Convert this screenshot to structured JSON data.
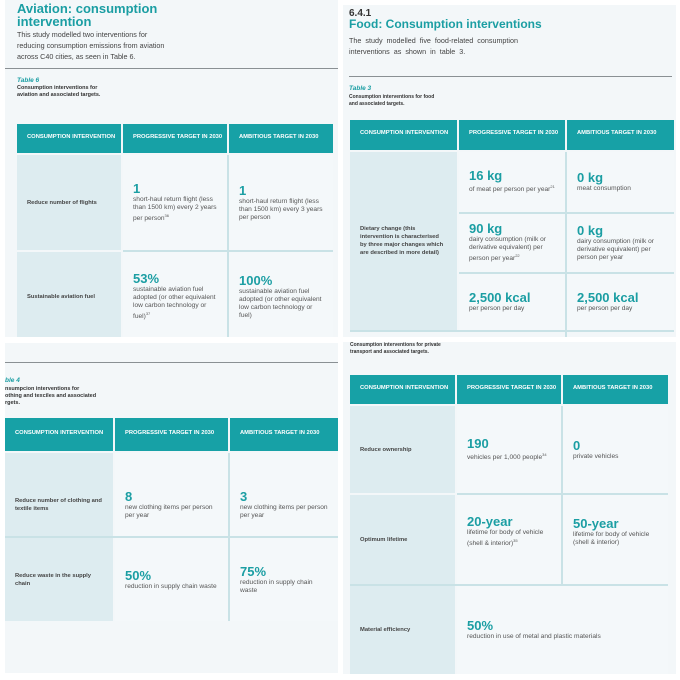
{
  "aviation": {
    "title_line1": "Aviation: consumption",
    "title_line2": "intervention",
    "intro": [
      "This study modelled two interventions for",
      "reducing consumption emissions from aviation",
      "across C40 cities, as seen in Table 6."
    ],
    "table_label": "Table 6",
    "caption": [
      "Consumption interventions for",
      "aviation and associated targets."
    ],
    "headers": [
      "CONSUMPTION INTERVENTION",
      "PROGRESSIVE TARGET IN 2030",
      "AMBITIOUS TARGET IN 2030"
    ],
    "rows": [
      {
        "label": "Reduce number of flights",
        "progressive": {
          "value": "1",
          "desc": "short-haul return flight (less than 1500 km) every 2 years per person",
          "note": "36"
        },
        "ambitious": {
          "value": "1",
          "desc": "short-haul return flight (less than 1500 km) every 3 years per person"
        }
      },
      {
        "label": "Sustainable aviation fuel",
        "progressive": {
          "value": "53%",
          "desc": "sustainable aviation fuel adopted (or other equivalent low carbon technology or fuel)",
          "note": "37"
        },
        "ambitious": {
          "value": "100%",
          "desc": "sustainable aviation fuel adopted (or other equivalent low carbon technology or fuel)"
        }
      }
    ]
  },
  "food": {
    "section": "6.4.1",
    "title": "Food: Consumption interventions",
    "intro": [
      "The study modelled five food-related consumption",
      "interventions as shown in table 3."
    ],
    "table_label": "Table 3",
    "caption": [
      "Consumption interventions for food",
      "and associated targets."
    ],
    "headers": [
      "CONSUMPTION INTERVENTION",
      "PROGRESSIVE TARGET IN 2030",
      "AMBITIOUS TARGET IN 2030"
    ],
    "label": "Dietary change (this intervention is characterised by three major changes which are described in more detail)",
    "rows": [
      {
        "progressive": {
          "value": "16 kg",
          "desc": "of meat per person per year",
          "note": "21"
        },
        "ambitious": {
          "value": "0 kg",
          "desc": "meat consumption"
        }
      },
      {
        "progressive": {
          "value": "90 kg",
          "desc": "dairy consumption (milk or derivative equivalent) per person per year",
          "note": "22"
        },
        "ambitious": {
          "value": "0 kg",
          "desc": "dairy consumption (milk or derivative equivalent) per person per year"
        }
      },
      {
        "progressive": {
          "value": "2,500 kcal",
          "desc": "per person per day"
        },
        "ambitious": {
          "value": "2,500 kcal",
          "desc": "per person per day"
        }
      }
    ]
  },
  "clothing": {
    "table_label": "ble 4",
    "caption": [
      "nsumpcion interventions for",
      "othing and texciles and associated",
      "rgets."
    ],
    "headers": [
      "CONSUMPTION INTERVENTION",
      "PROGRESSIVE TARGET IN 2030",
      "AMBITIOUS TARGET IN 2030"
    ],
    "rows": [
      {
        "label": "Reduce number of clothing and textile items",
        "progressive": {
          "value": "8",
          "desc": "new clothing items per person per year"
        },
        "ambitious": {
          "value": "3",
          "desc": "new clothing items per person per year"
        }
      },
      {
        "label": "Reduce waste in the supply chain",
        "progressive": {
          "value": "50%",
          "desc": "reduction in supply chain waste"
        },
        "ambitious": {
          "value": "75%",
          "desc": "reduction in supply chain waste"
        }
      }
    ]
  },
  "transport": {
    "caption": [
      "Consumption interventions for private",
      "transport and associated targets."
    ],
    "headers": [
      "CONSUMPTION INTERVENTION",
      "PROGRESSIVE TARGET IN 2030",
      "AMBITIOUS TARGET IN 2030"
    ],
    "rows": [
      {
        "label": "Reduce ownership",
        "progressive": {
          "value": "190",
          "desc": "vehicles per 1,000 people",
          "note": "34"
        },
        "ambitious": {
          "value": "0",
          "desc": "private vehicles"
        }
      },
      {
        "label": "Optimum lifetime",
        "progressive": {
          "value": "20-year",
          "desc": "lifetime for body of vehicle (shell & interior)",
          "note": "35"
        },
        "ambitious": {
          "value": "50-year",
          "desc": "lifetime for body of vehicle (shell & interior)"
        }
      },
      {
        "label": "Material efficiency",
        "combined": {
          "value": "50%",
          "desc": "reduction in use of metal and plastic materials"
        }
      }
    ]
  }
}
